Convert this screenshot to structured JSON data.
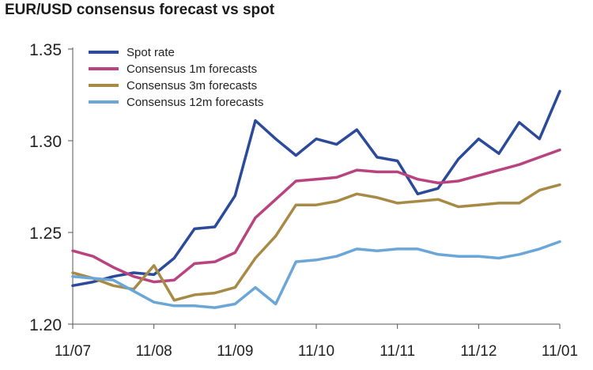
{
  "chart_data": {
    "type": "line",
    "title": "EUR/USD consensus forecast vs spot",
    "xlabel": "",
    "ylabel": "",
    "ylim": [
      1.2,
      1.35
    ],
    "yticks": [
      "1.35",
      "1.30",
      "1.25",
      "1.20"
    ],
    "ytick_values": [
      1.35,
      1.3,
      1.25,
      1.2
    ],
    "xticks": [
      "11/07",
      "11/08",
      "11/09",
      "11/10",
      "11/11",
      "11/12",
      "11/01"
    ],
    "x_count": 25,
    "legend_position": "top-left",
    "grid": false,
    "series": [
      {
        "name": "Spot rate",
        "color": "#2c4a9a",
        "values": [
          1.221,
          1.223,
          1.226,
          1.228,
          1.227,
          1.236,
          1.252,
          1.253,
          1.27,
          1.311,
          1.301,
          1.292,
          1.301,
          1.298,
          1.306,
          1.291,
          1.289,
          1.271,
          1.274,
          1.29,
          1.301,
          1.293,
          1.31,
          1.301,
          1.327
        ]
      },
      {
        "name": "Consensus 1m forecasts",
        "color": "#b8437e",
        "values": [
          1.24,
          1.237,
          1.231,
          1.226,
          1.223,
          1.224,
          1.233,
          1.234,
          1.239,
          1.258,
          1.268,
          1.278,
          1.279,
          1.28,
          1.284,
          1.283,
          1.283,
          1.279,
          1.277,
          1.278,
          1.281,
          1.284,
          1.287,
          1.291,
          1.295
        ]
      },
      {
        "name": "Consensus 3m forecasts",
        "color": "#a88a47",
        "values": [
          1.228,
          1.225,
          1.221,
          1.219,
          1.232,
          1.213,
          1.216,
          1.217,
          1.22,
          1.236,
          1.248,
          1.265,
          1.265,
          1.267,
          1.271,
          1.269,
          1.266,
          1.267,
          1.268,
          1.264,
          1.265,
          1.266,
          1.266,
          1.273,
          1.276
        ]
      },
      {
        "name": "Consensus 12m forecasts",
        "color": "#6aa6d8",
        "values": [
          1.226,
          1.225,
          1.224,
          1.218,
          1.212,
          1.21,
          1.21,
          1.209,
          1.211,
          1.22,
          1.211,
          1.234,
          1.235,
          1.237,
          1.241,
          1.24,
          1.241,
          1.241,
          1.238,
          1.237,
          1.237,
          1.236,
          1.238,
          1.241,
          1.245
        ]
      }
    ]
  }
}
